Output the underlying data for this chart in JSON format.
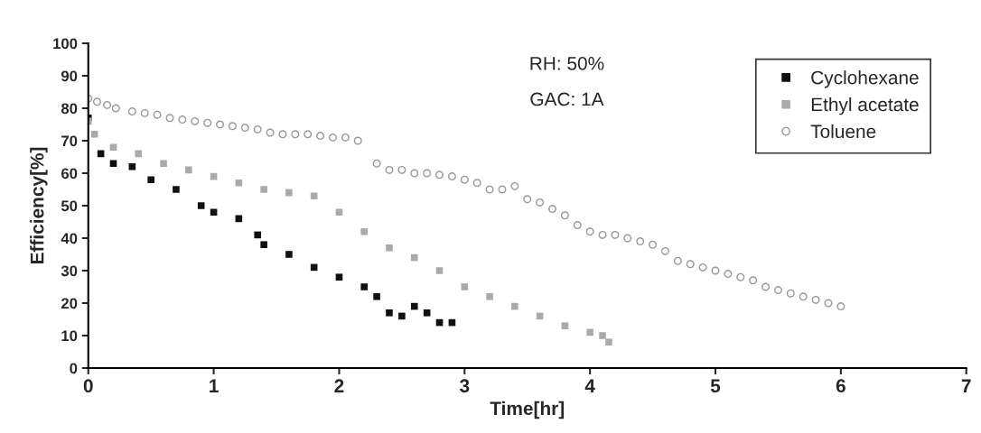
{
  "chart_data": {
    "type": "scatter",
    "xlabel": "Time[hr]",
    "ylabel": "Efficiency[%]",
    "xlim": [
      0,
      7
    ],
    "xticks": [
      0,
      1,
      2,
      3,
      4,
      5,
      6,
      7
    ],
    "ylim": [
      0,
      100
    ],
    "yticks": [
      0,
      10,
      20,
      30,
      40,
      50,
      60,
      70,
      80,
      90,
      100
    ],
    "grid": false,
    "legend": "top right",
    "annotations": [
      "RH: 50%",
      "GAC: 1A"
    ],
    "series": [
      {
        "name": "Cyclohexane",
        "color": "#111111",
        "marker": "square",
        "x": [
          0,
          0.1,
          0.2,
          0.35,
          0.5,
          0.7,
          0.9,
          1.0,
          1.2,
          1.35,
          1.4,
          1.6,
          1.8,
          2.0,
          2.2,
          2.3,
          2.4,
          2.5,
          2.6,
          2.7,
          2.8,
          2.9
        ],
        "values": [
          77,
          66,
          63,
          62,
          58,
          55,
          50,
          48,
          46,
          41,
          38,
          35,
          31,
          28,
          25,
          22,
          17,
          16,
          19,
          17,
          14,
          14
        ]
      },
      {
        "name": "Ethyl acetate",
        "color": "#aaaaaa",
        "marker": "square",
        "x": [
          0,
          0.05,
          0.2,
          0.4,
          0.6,
          0.8,
          1.0,
          1.2,
          1.4,
          1.6,
          1.8,
          2.0,
          2.2,
          2.4,
          2.6,
          2.8,
          3.0,
          3.2,
          3.4,
          3.6,
          3.8,
          4.0,
          4.1,
          4.15
        ],
        "values": [
          76,
          72,
          68,
          66,
          63,
          61,
          59,
          57,
          55,
          54,
          53,
          48,
          42,
          37,
          34,
          30,
          25,
          22,
          19,
          16,
          13,
          11,
          10,
          8
        ]
      },
      {
        "name": "Toluene",
        "color": "#999999",
        "marker": "circle",
        "x": [
          0,
          0.07,
          0.15,
          0.22,
          0.35,
          0.45,
          0.55,
          0.65,
          0.75,
          0.85,
          0.95,
          1.05,
          1.15,
          1.25,
          1.35,
          1.45,
          1.55,
          1.65,
          1.75,
          1.85,
          1.95,
          2.05,
          2.15,
          2.3,
          2.4,
          2.5,
          2.6,
          2.7,
          2.8,
          2.9,
          3.0,
          3.1,
          3.2,
          3.3,
          3.4,
          3.5,
          3.6,
          3.7,
          3.8,
          3.9,
          4.0,
          4.1,
          4.2,
          4.3,
          4.4,
          4.5,
          4.6,
          4.7,
          4.8,
          4.9,
          5.0,
          5.1,
          5.2,
          5.3,
          5.4,
          5.5,
          5.6,
          5.7,
          5.8,
          5.9,
          6.0
        ],
        "values": [
          83,
          82,
          81,
          80,
          79,
          78.5,
          78,
          77,
          76.5,
          76,
          75.5,
          75,
          74.5,
          74,
          73.5,
          72.5,
          72,
          72,
          72,
          71.5,
          71,
          71,
          70,
          63,
          61,
          61,
          60,
          60,
          59.5,
          59,
          58,
          57,
          55,
          55,
          56,
          52,
          51,
          49,
          47,
          44,
          42,
          41,
          41,
          40,
          39,
          38,
          36,
          33,
          32,
          31,
          30,
          29,
          28,
          27,
          25,
          24,
          23,
          22,
          21,
          20,
          19
        ]
      }
    ]
  }
}
